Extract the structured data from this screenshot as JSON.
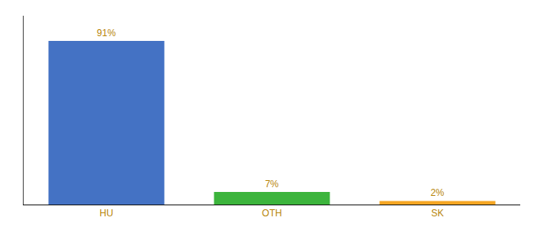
{
  "chart_data": {
    "type": "bar",
    "categories": [
      "HU",
      "OTH",
      "SK"
    ],
    "values": [
      91,
      7,
      2
    ],
    "value_labels": [
      "91%",
      "7%",
      "2%"
    ],
    "data_labels": true,
    "colors": [
      "#4472c4",
      "#3cb43c",
      "#f5a623"
    ],
    "ylim": [
      0,
      105
    ],
    "grid": false,
    "tick_labels": "x"
  }
}
